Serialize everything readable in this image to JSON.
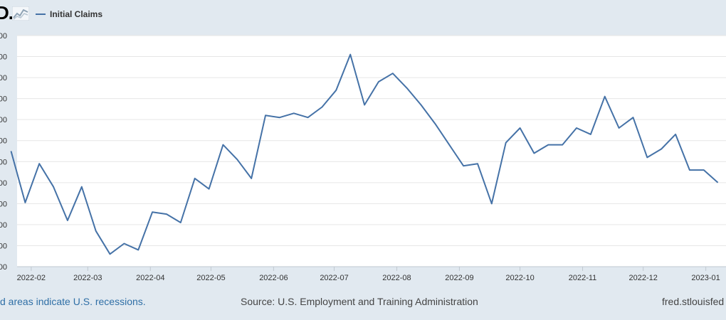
{
  "logo": {
    "text": "D.",
    "graph_icon": "line-graph-icon"
  },
  "legend": {
    "series_label": "Initial Claims"
  },
  "footer": {
    "recession_note": "d areas indicate U.S. recessions.",
    "source": "Source: U.S. Employment and Training Administration",
    "credit": "fred.stlouisfed"
  },
  "chart_data": {
    "type": "line",
    "title": "",
    "xlabel": "",
    "ylabel": "",
    "x_ticks": [
      "2022-02",
      "2022-03",
      "2022-04",
      "2022-05",
      "2022-06",
      "2022-07",
      "2022-08",
      "2022-09",
      "2022-10",
      "2022-11",
      "2022-12",
      "2023-01"
    ],
    "x_range": [
      "2022-01-25",
      "2023-01-11"
    ],
    "y_tick_labels": [
      "00",
      "00",
      "00",
      "00",
      "00",
      "00",
      "00",
      "00",
      "00",
      "00",
      "00",
      "00"
    ],
    "y_tick_count": 12,
    "y_range_index": [
      0,
      11
    ],
    "grid": true,
    "legend_position": "top-left",
    "colors": {
      "line": "#4572a7",
      "grid": "#e6e6e6",
      "plot_bg": "#ffffff",
      "page_bg": "#e1e9f0"
    },
    "series": [
      {
        "name": "Initial Claims",
        "points": [
          [
            "2022-01-22",
            5.5
          ],
          [
            "2022-01-29",
            3.05
          ],
          [
            "2022-02-05",
            4.9
          ],
          [
            "2022-02-12",
            3.8
          ],
          [
            "2022-02-19",
            2.2
          ],
          [
            "2022-02-26",
            3.8
          ],
          [
            "2022-03-05",
            1.7
          ],
          [
            "2022-03-12",
            0.6
          ],
          [
            "2022-03-19",
            1.1
          ],
          [
            "2022-03-26",
            0.8
          ],
          [
            "2022-04-02",
            2.6
          ],
          [
            "2022-04-09",
            2.5
          ],
          [
            "2022-04-16",
            2.1
          ],
          [
            "2022-04-23",
            4.2
          ],
          [
            "2022-04-30",
            3.7
          ],
          [
            "2022-05-07",
            5.8
          ],
          [
            "2022-05-14",
            5.1
          ],
          [
            "2022-05-21",
            4.2
          ],
          [
            "2022-05-28",
            7.2
          ],
          [
            "2022-06-04",
            7.1
          ],
          [
            "2022-06-11",
            7.3
          ],
          [
            "2022-06-18",
            7.1
          ],
          [
            "2022-06-25",
            7.6
          ],
          [
            "2022-07-02",
            8.4
          ],
          [
            "2022-07-09",
            10.1
          ],
          [
            "2022-07-16",
            7.7
          ],
          [
            "2022-07-23",
            8.8
          ],
          [
            "2022-07-30",
            9.2
          ],
          [
            "2022-08-06",
            8.5
          ],
          [
            "2022-08-13",
            7.7
          ],
          [
            "2022-08-20",
            6.8
          ],
          [
            "2022-08-27",
            5.8
          ],
          [
            "2022-09-03",
            4.8
          ],
          [
            "2022-09-10",
            4.9
          ],
          [
            "2022-09-17",
            3.0
          ],
          [
            "2022-09-24",
            5.9
          ],
          [
            "2022-10-01",
            6.6
          ],
          [
            "2022-10-08",
            5.4
          ],
          [
            "2022-10-15",
            5.8
          ],
          [
            "2022-10-22",
            5.8
          ],
          [
            "2022-10-29",
            6.6
          ],
          [
            "2022-11-05",
            6.3
          ],
          [
            "2022-11-12",
            8.1
          ],
          [
            "2022-11-19",
            6.6
          ],
          [
            "2022-11-26",
            7.1
          ],
          [
            "2022-12-03",
            5.2
          ],
          [
            "2022-12-10",
            5.6
          ],
          [
            "2022-12-17",
            6.3
          ],
          [
            "2022-12-24",
            4.6
          ],
          [
            "2022-12-31",
            4.6
          ],
          [
            "2023-01-07",
            4.0
          ]
        ]
      }
    ]
  }
}
